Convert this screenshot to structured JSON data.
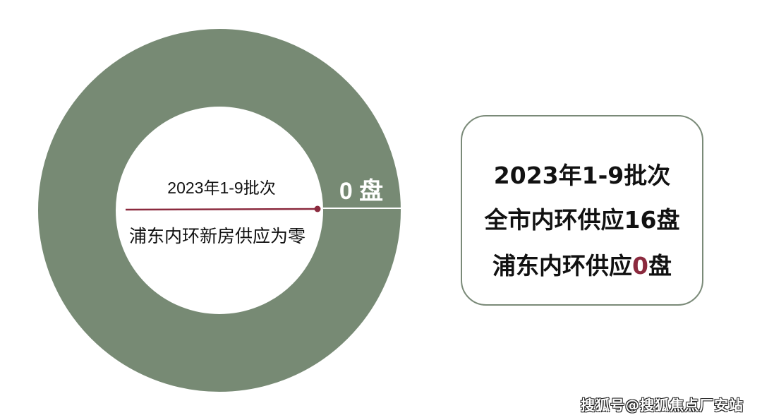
{
  "chart_data": {
    "type": "pie",
    "variant": "donut",
    "categories": [
      "浦东内环新房供应"
    ],
    "values": [
      0
    ],
    "slice_label": "0 盘",
    "center_title": "2023年1-9批次",
    "center_subtitle": "浦东内环新房供应为零",
    "colors": {
      "ring": "#778a74",
      "leader": "#8b2a3e",
      "divider": "#ffffff"
    }
  },
  "summary": {
    "line1": "2023年1-9批次",
    "line2": "全市内环供应16盘",
    "line3_prefix": "浦东内环供应",
    "line3_value": "0",
    "line3_suffix": "盘",
    "highlight_color": "#8b2a3e",
    "border_color": "#7a8a78"
  },
  "watermark": "搜狐号@搜狐焦点厂安站"
}
